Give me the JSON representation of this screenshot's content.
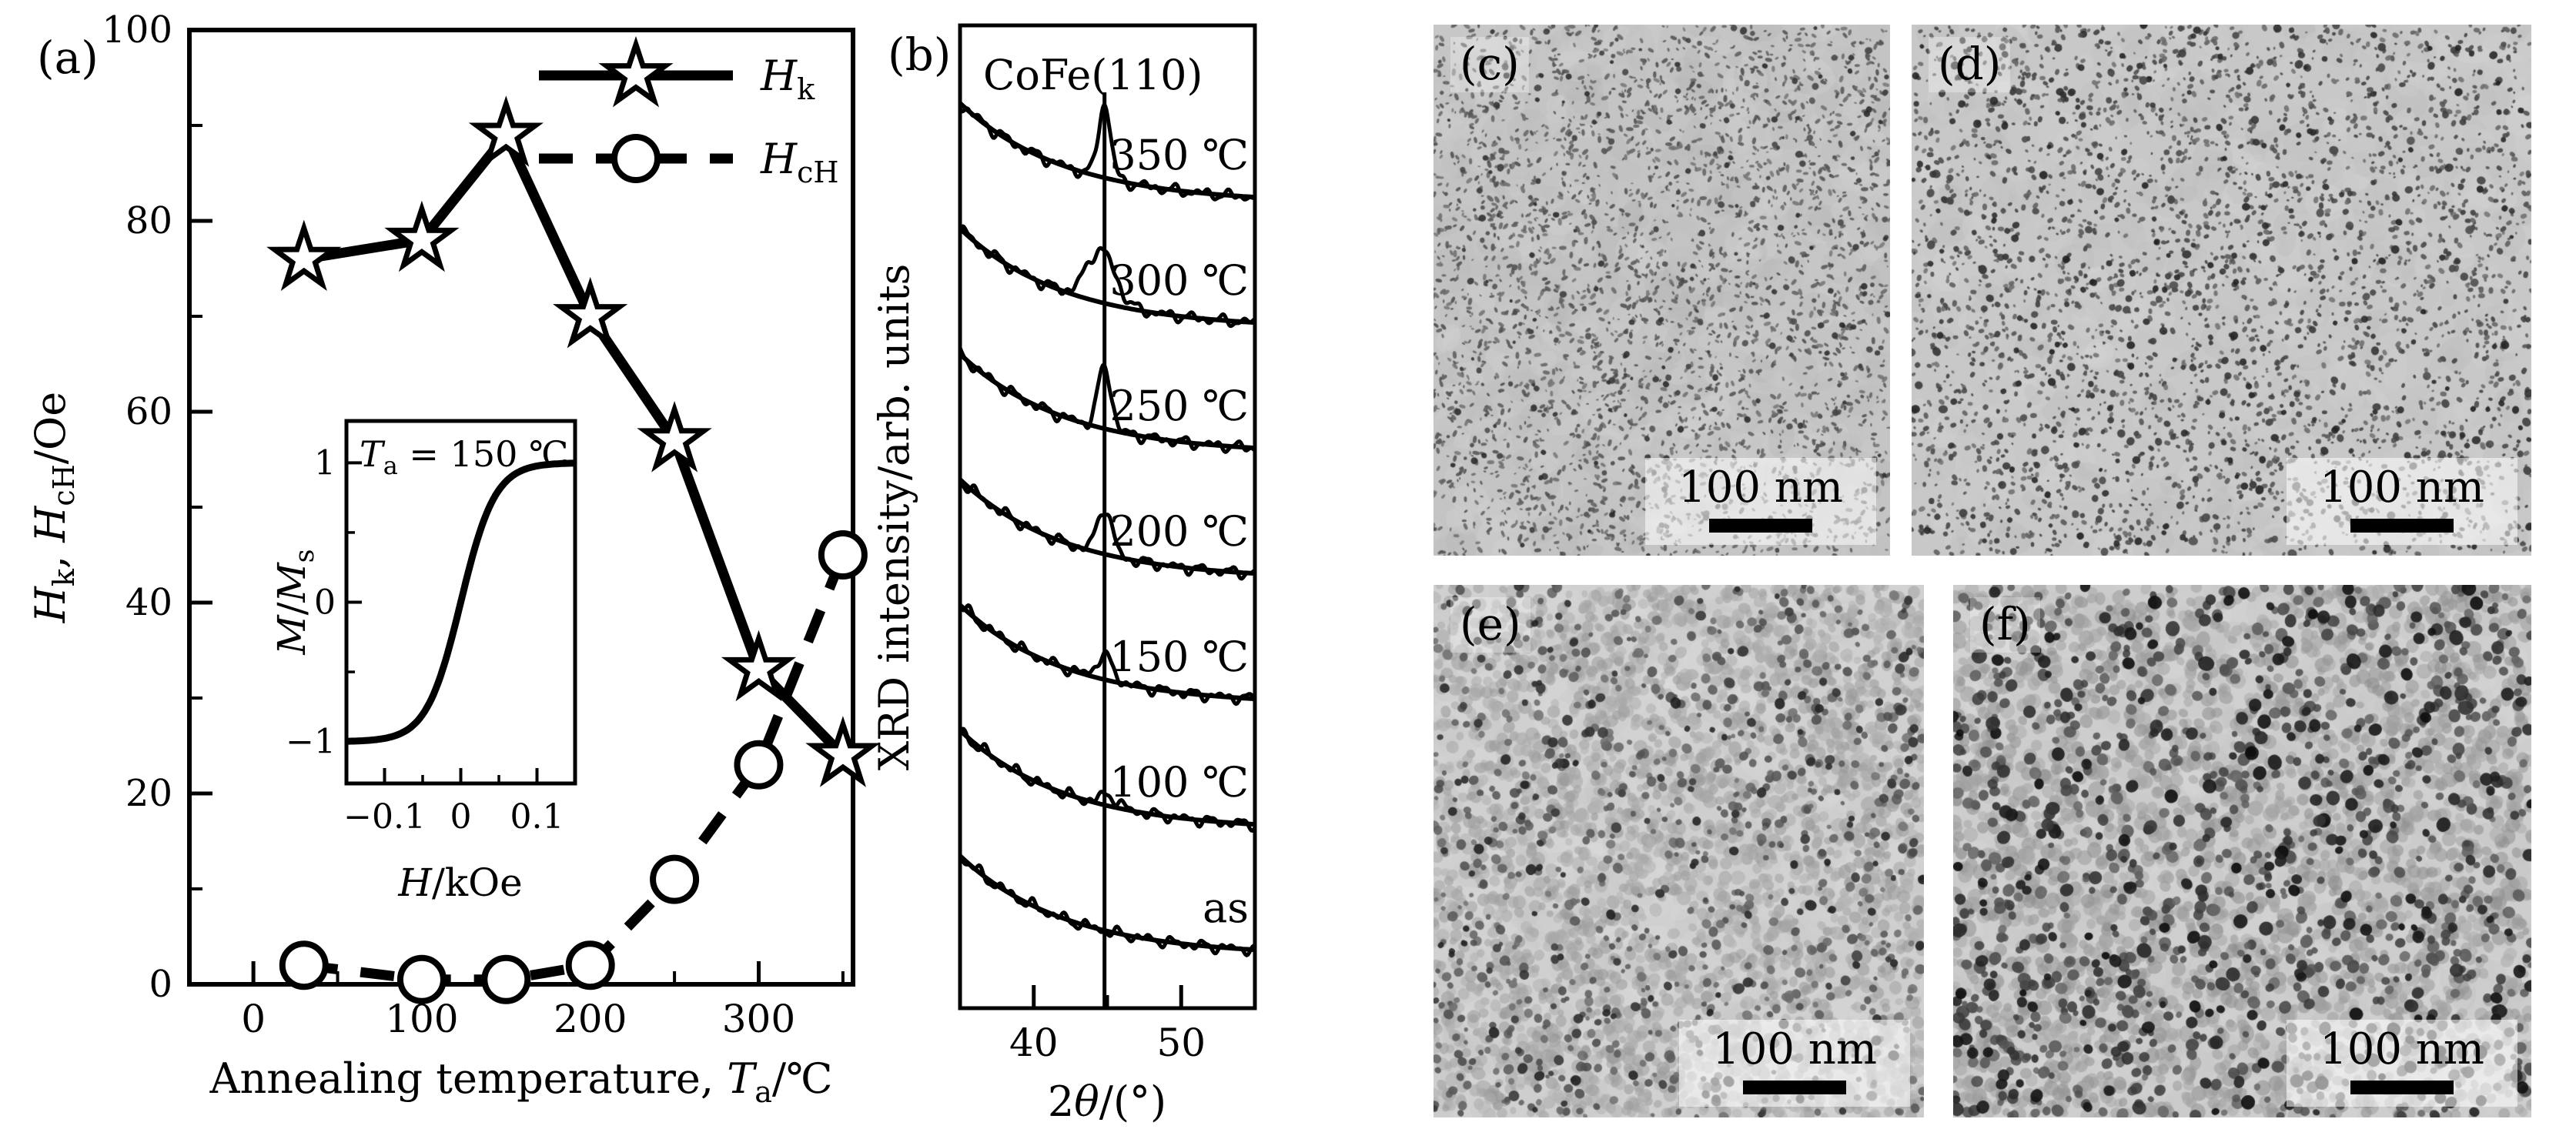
{
  "figure": {
    "colors": {
      "foreground": "#000000",
      "background": "#ffffff"
    },
    "panels": {
      "a": {
        "letter": "(a)"
      },
      "b": {
        "letter": "(b)"
      },
      "c": {
        "letter": "(c)",
        "scale_label": "100 nm"
      },
      "d": {
        "letter": "(d)",
        "scale_label": "100 nm"
      },
      "e": {
        "letter": "(e)",
        "scale_label": "100 nm"
      },
      "f": {
        "letter": "(f)",
        "scale_label": "100 nm"
      }
    }
  },
  "chart_data": [
    {
      "id": "panel-a-main",
      "type": "line",
      "xlabel_segments": [
        {
          "t": "Annealing temperature, "
        },
        {
          "t": "T",
          "i": true
        },
        {
          "t": "a",
          "sub": true
        },
        {
          "t": "/℃"
        }
      ],
      "ylabel_segments": [
        {
          "t": "H",
          "i": true
        },
        {
          "t": "k",
          "sub": true
        },
        {
          "t": ", "
        },
        {
          "t": "H",
          "i": true
        },
        {
          "t": "cH",
          "sub": true
        },
        {
          "t": "/Oe"
        }
      ],
      "x": [
        30,
        100,
        150,
        200,
        250,
        300,
        350
      ],
      "series": [
        {
          "name": "Hk",
          "label_segments": [
            {
              "t": "H",
              "i": true
            },
            {
              "t": "k",
              "sub": true
            }
          ],
          "marker": "star",
          "line": "solid",
          "values": [
            76,
            78,
            89,
            70,
            57,
            33,
            24
          ]
        },
        {
          "name": "HcH",
          "label_segments": [
            {
              "t": "H",
              "i": true
            },
            {
              "t": "cH",
              "sub": true
            }
          ],
          "marker": "circle",
          "line": "dashed",
          "values": [
            2,
            0.5,
            0.5,
            2,
            11,
            23,
            45
          ]
        }
      ],
      "xlim": [
        -38,
        356
      ],
      "ylim": [
        0,
        100
      ],
      "xticks": [
        0,
        100,
        200,
        300
      ],
      "xminor": [
        50,
        150,
        250,
        350
      ],
      "yticks": [
        0,
        20,
        40,
        60,
        80,
        100
      ],
      "yminor": [
        10,
        30,
        50,
        70,
        90
      ],
      "legend_position": "inside-top-right",
      "grid": false
    },
    {
      "id": "panel-a-inset",
      "type": "line",
      "annotation_segments": [
        {
          "t": "T",
          "i": true
        },
        {
          "t": "a",
          "sub": true
        },
        {
          "t": " = 150 ℃"
        }
      ],
      "xlabel_segments": [
        {
          "t": "H",
          "i": true
        },
        {
          "t": "/kOe"
        }
      ],
      "ylabel_segments": [
        {
          "t": "M",
          "i": true
        },
        {
          "t": "/"
        },
        {
          "t": "M",
          "i": true
        },
        {
          "t": "s",
          "sub": true
        }
      ],
      "xlim": [
        -0.15,
        0.15
      ],
      "ylim": [
        -1.3,
        1.3
      ],
      "xticks": [
        -0.1,
        0,
        0.1
      ],
      "xminor": [
        -0.05,
        0.05
      ],
      "yticks": [
        1,
        0,
        -1
      ],
      "yminor": [
        0.5,
        -0.5
      ],
      "saturation_scale_kOe": 0.045,
      "x": [
        -0.15,
        -0.1,
        -0.08,
        -0.06,
        -0.04,
        -0.02,
        0,
        0.02,
        0.04,
        0.06,
        0.08,
        0.1,
        0.15
      ],
      "values": [
        -1,
        -0.98,
        -0.95,
        -0.87,
        -0.71,
        -0.42,
        0,
        0.42,
        0.71,
        0.87,
        0.95,
        0.98,
        1
      ]
    },
    {
      "id": "panel-b",
      "type": "line",
      "title": "CoFe(110)",
      "ylabel": "XRD intensity/arb. units",
      "xlabel_segments": [
        {
          "t": "2"
        },
        {
          "t": "θ",
          "i": true
        },
        {
          "t": "/(°)"
        }
      ],
      "xlim": [
        35,
        55
      ],
      "xticks": [
        40,
        50
      ],
      "xminor": [
        45
      ],
      "marker_line_2theta": 44.8,
      "curves": [
        {
          "label": "350 ℃",
          "peak_rel": 1.0
        },
        {
          "label": "300 ℃",
          "peak_rel": 0.72
        },
        {
          "label": "250 ℃",
          "peak_rel": 0.84
        },
        {
          "label": "200 ℃",
          "peak_rel": 0.63
        },
        {
          "label": "150 ℃",
          "peak_rel": 0.32
        },
        {
          "label": "100 ℃",
          "peak_rel": 0.15
        },
        {
          "label": "as",
          "peak_rel": 0
        }
      ]
    }
  ]
}
